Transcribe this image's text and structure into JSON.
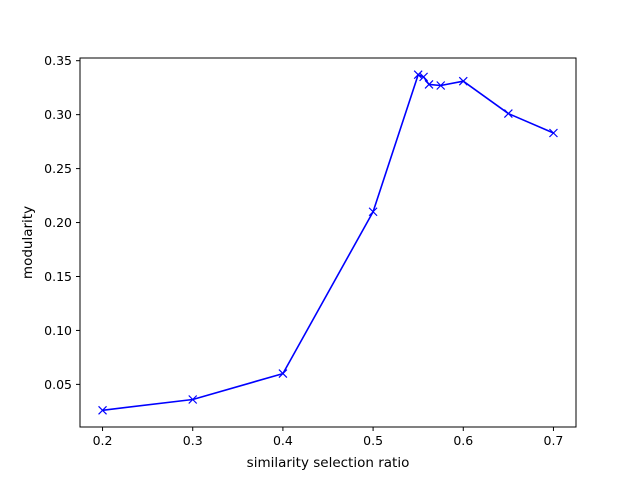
{
  "chart_data": {
    "type": "line",
    "title": "",
    "xlabel": "similarity selection ratio",
    "ylabel": "modularity",
    "xlim": [
      0.175,
      0.725
    ],
    "ylim": [
      0.0105,
      0.3525
    ],
    "xticks": [
      0.2,
      0.3,
      0.4,
      0.5,
      0.6,
      0.7
    ],
    "xtick_labels": [
      "0.2",
      "0.3",
      "0.4",
      "0.5",
      "0.6",
      "0.7"
    ],
    "yticks": [
      0.05,
      0.1,
      0.15,
      0.2,
      0.25,
      0.3,
      0.35
    ],
    "ytick_labels": [
      "0.05",
      "0.10",
      "0.15",
      "0.20",
      "0.25",
      "0.30",
      "0.35"
    ],
    "grid": false,
    "legend": "none",
    "series": [
      {
        "color": "#0000ff",
        "marker": "x",
        "x": [
          0.2,
          0.3,
          0.4,
          0.5,
          0.55,
          0.556,
          0.562,
          0.575,
          0.6,
          0.65,
          0.7
        ],
        "y": [
          0.026,
          0.036,
          0.06,
          0.21,
          0.337,
          0.335,
          0.328,
          0.327,
          0.331,
          0.301,
          0.283
        ]
      }
    ]
  }
}
